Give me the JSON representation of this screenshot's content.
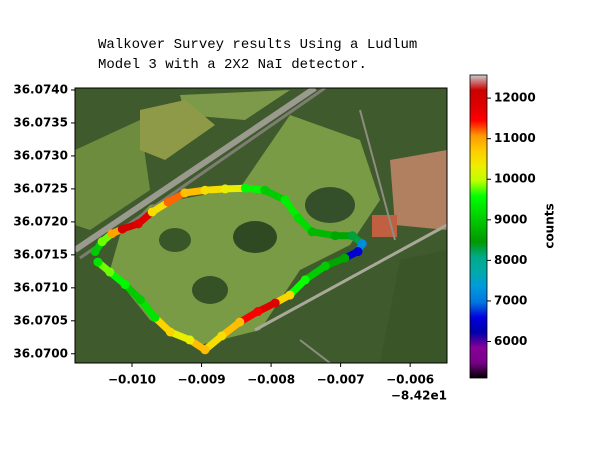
{
  "chart_data": {
    "type": "scatter",
    "title": [
      "Walkover Survey results Using a Ludlum",
      "Model 3 with a 2X2 NaI detector."
    ],
    "x": [
      -0.01053,
      -0.01043,
      -0.01029,
      -0.01014,
      -0.00991,
      -0.00971,
      -0.00948,
      -0.00924,
      -0.00895,
      -0.00866,
      -0.00837,
      -0.00809,
      -0.0078,
      -0.00761,
      -0.00741,
      -0.00708,
      -0.00683,
      -0.00669,
      -0.00675,
      -0.00694,
      -0.00722,
      -0.00751,
      -0.00773,
      -0.00794,
      -0.00819,
      -0.00845,
      -0.00871,
      -0.00895,
      -0.00917,
      -0.00945,
      -0.00967,
      -0.00988,
      -0.0101,
      -0.01032,
      -0.01049
    ],
    "y": [
      36.07155,
      36.0717,
      36.07182,
      36.07189,
      36.07197,
      36.07215,
      36.0723,
      36.07244,
      36.07248,
      36.0725,
      36.07251,
      36.07248,
      36.07233,
      36.07206,
      36.07185,
      36.07179,
      36.07179,
      36.07167,
      36.07155,
      36.07145,
      36.07133,
      36.07112,
      36.07089,
      36.07077,
      36.07064,
      36.07048,
      36.07027,
      36.07006,
      36.07021,
      36.07033,
      36.07055,
      36.07082,
      36.07105,
      36.07124,
      36.07139
    ],
    "values": [
      9000,
      9800,
      11000,
      12000,
      11800,
      10500,
      11200,
      10800,
      10500,
      10300,
      9500,
      9000,
      9400,
      9200,
      8800,
      8600,
      8300,
      7200,
      6500,
      8600,
      9000,
      9600,
      10600,
      11800,
      11500,
      10800,
      10500,
      10800,
      10300,
      10600,
      9300,
      9000,
      9500,
      9800,
      9300
    ],
    "xlim": [
      -0.01082,
      -0.00547
    ],
    "ylim": [
      36.06986,
      36.07403
    ],
    "xticks": [
      {
        "value": -0.01,
        "label": "−0.010"
      },
      {
        "value": -0.009,
        "label": "−0.009"
      },
      {
        "value": -0.008,
        "label": "−0.008"
      },
      {
        "value": -0.007,
        "label": "−0.007"
      },
      {
        "value": -0.006,
        "label": "−0.006"
      }
    ],
    "x_offset": "−8.42e1",
    "yticks": [
      {
        "value": 36.07,
        "label": "36.0700"
      },
      {
        "value": 36.0705,
        "label": "36.0705"
      },
      {
        "value": 36.071,
        "label": "36.0710"
      },
      {
        "value": 36.0715,
        "label": "36.0715"
      },
      {
        "value": 36.072,
        "label": "36.0720"
      },
      {
        "value": 36.0725,
        "label": "36.0725"
      },
      {
        "value": 36.073,
        "label": "36.0730"
      },
      {
        "value": 36.0735,
        "label": "36.0735"
      },
      {
        "value": 36.074,
        "label": "36.0740"
      }
    ],
    "colormap": "nipy_spectral",
    "clim": [
      5100,
      12570
    ],
    "cticks": [
      6000,
      7000,
      8000,
      9000,
      10000,
      11000,
      12000
    ],
    "colorbar_label": "counts"
  }
}
